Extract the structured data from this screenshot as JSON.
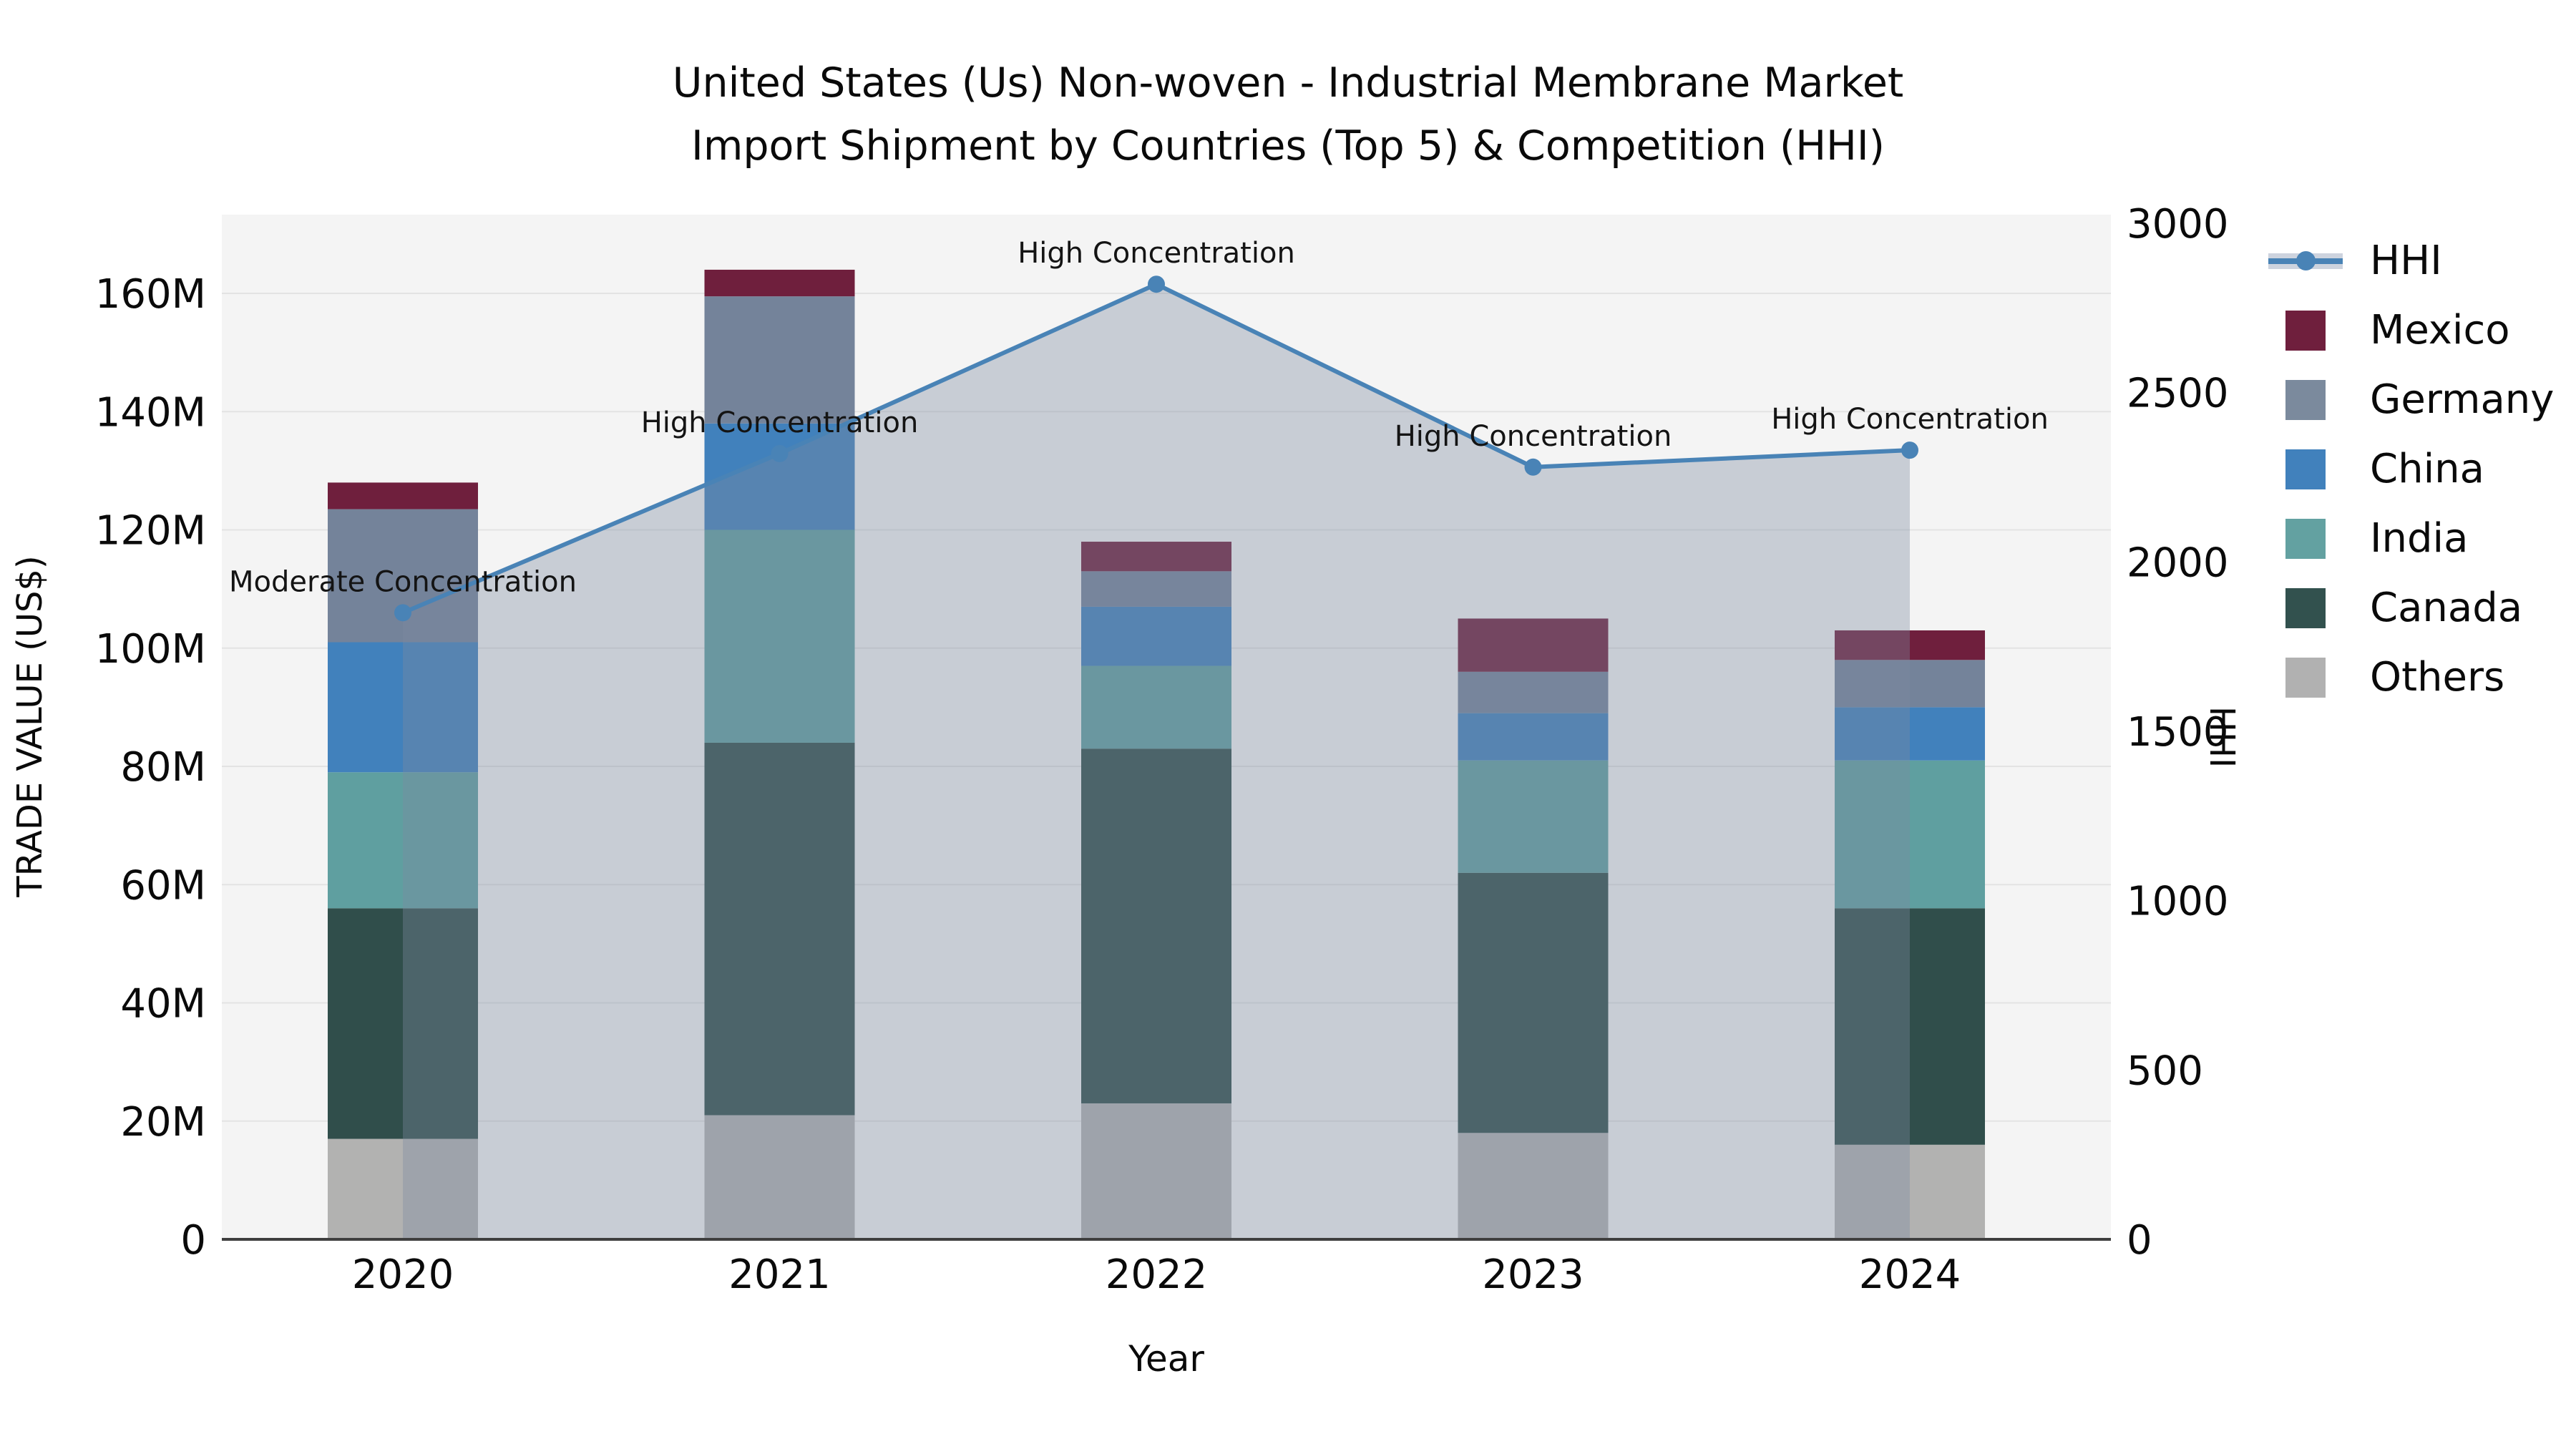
{
  "title": {
    "line1": "United States (Us) Non-woven - Industrial Membrane Market",
    "line2": "Import Shipment by Countries (Top 5) & Competition (HHI)"
  },
  "legend": {
    "items": [
      {
        "label": "HHI",
        "type": "line",
        "color": "#4983b6"
      },
      {
        "label": "Mexico",
        "type": "square",
        "color": "#6f1f3d"
      },
      {
        "label": "Germany",
        "type": "square",
        "color": "#7b8a9d"
      },
      {
        "label": "China",
        "type": "square",
        "color": "#4181bc"
      },
      {
        "label": "India",
        "type": "square",
        "color": "#63a1a1"
      },
      {
        "label": "Canada",
        "type": "square",
        "color": "#32514e"
      },
      {
        "label": "Others",
        "type": "square",
        "color": "#b1b1b1"
      }
    ]
  },
  "chart_data": {
    "type": "bar",
    "subtype": "stacked-bars-with-line",
    "categories": [
      "2020",
      "2021",
      "2022",
      "2023",
      "2024"
    ],
    "unit": "Trade value, millions of US$",
    "series": [
      {
        "name": "Others",
        "color": "#b2b2b1",
        "values": [
          17,
          21,
          23,
          18,
          16
        ]
      },
      {
        "name": "Canada",
        "color": "#304e4b",
        "values": [
          39,
          63,
          60,
          44,
          40
        ]
      },
      {
        "name": "India",
        "color": "#5f9fa0",
        "values": [
          23,
          36,
          14,
          19,
          25
        ]
      },
      {
        "name": "China",
        "color": "#4181bc",
        "values": [
          22,
          18,
          10,
          8,
          9
        ]
      },
      {
        "name": "Germany",
        "color": "#74839a",
        "values": [
          22.5,
          21.5,
          6,
          7,
          8
        ]
      },
      {
        "name": "Mexico",
        "color": "#6f1f3d",
        "values": [
          4.5,
          4.5,
          5,
          9,
          5
        ]
      }
    ],
    "bar_totals": [
      128,
      164,
      118,
      105,
      103
    ],
    "hhi": {
      "name": "HHI",
      "color": "#4983b6",
      "area_fill": "rgba(126,139,161,0.37)",
      "values": [
        1850,
        2320,
        2820,
        2280,
        2330
      ]
    },
    "annotations": [
      {
        "index": 0,
        "text": "Moderate Concentration"
      },
      {
        "index": 1,
        "text": "High Concentration"
      },
      {
        "index": 2,
        "text": "High Concentration"
      },
      {
        "index": 3,
        "text": "High Concentration"
      },
      {
        "index": 4,
        "text": "High Concentration"
      }
    ],
    "y_left": {
      "label": "TRADE VALUE (US$)",
      "tick_values": [
        0,
        20,
        40,
        60,
        80,
        100,
        120,
        140,
        160
      ],
      "tick_labels": [
        "0",
        "20M",
        "40M",
        "60M",
        "80M",
        "100M",
        "120M",
        "140M",
        "160M"
      ],
      "max": 160
    },
    "y_right": {
      "label": "HHI",
      "tick_values": [
        0,
        500,
        1000,
        1500,
        2000,
        2500,
        3000
      ],
      "tick_labels": [
        "0",
        "500",
        "1000",
        "1500",
        "2000",
        "2500",
        "3000"
      ],
      "max": 3000
    },
    "xlabel": "Year",
    "grid": true,
    "legend_position": "right"
  }
}
